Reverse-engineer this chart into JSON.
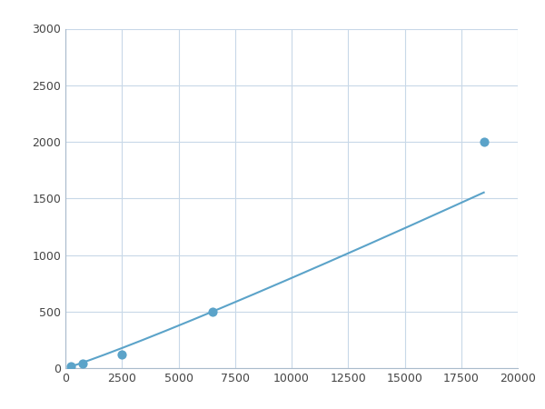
{
  "x": [
    250,
    750,
    2500,
    6500,
    18500
  ],
  "y": [
    20,
    40,
    120,
    500,
    2000
  ],
  "line_color": "#5BA3C9",
  "marker_color": "#5BA3C9",
  "marker_size": 6,
  "line_width": 1.5,
  "xlim": [
    0,
    20000
  ],
  "ylim": [
    0,
    3000
  ],
  "xticks": [
    0,
    2500,
    5000,
    7500,
    10000,
    12500,
    15000,
    17500,
    20000
  ],
  "yticks": [
    0,
    500,
    1000,
    1500,
    2000,
    2500,
    3000
  ],
  "grid_color": "#c8d8e8",
  "background_color": "#ffffff",
  "figsize": [
    6.0,
    4.5
  ],
  "dpi": 100
}
